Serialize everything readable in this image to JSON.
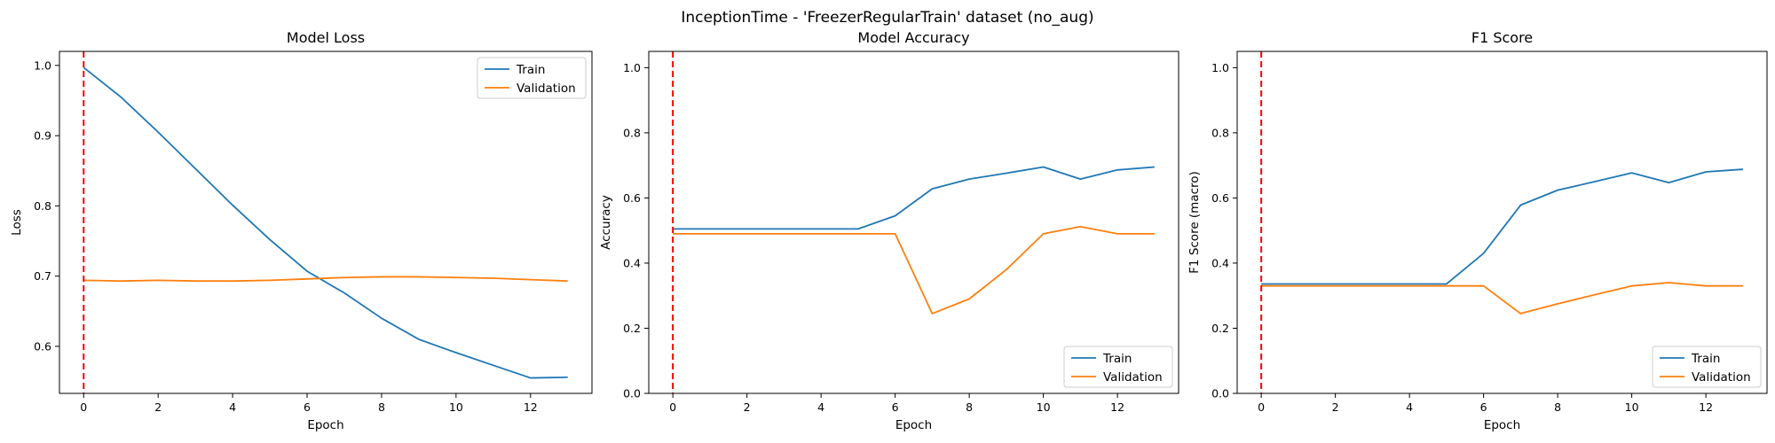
{
  "suptitle": "InceptionTime - 'FreezerRegularTrain' dataset (no_aug)",
  "colors": {
    "train": "#1f77b4",
    "validation": "#ff7f0e",
    "marker": "#ff0000"
  },
  "chart_data": [
    {
      "type": "line",
      "title": "Model Loss",
      "xlabel": "Epoch",
      "ylabel": "Loss",
      "xlim": [
        -0.65,
        13.65
      ],
      "ylim": [
        0.533,
        1.02
      ],
      "xticks": [
        0,
        2,
        4,
        6,
        8,
        10,
        12
      ],
      "yticks": [
        0.6,
        0.7,
        0.8,
        0.9,
        1.0
      ],
      "ytick_labels": [
        "0.6",
        "0.7",
        "0.8",
        "0.9",
        "1.0"
      ],
      "legend_position": "upper right",
      "vline_x": 0,
      "x": [
        0,
        1,
        2,
        3,
        4,
        5,
        6,
        7,
        8,
        9,
        10,
        11,
        12,
        13
      ],
      "series": [
        {
          "name": "Train",
          "values": [
            0.997,
            0.955,
            0.905,
            0.853,
            0.801,
            0.752,
            0.707,
            0.676,
            0.64,
            0.61,
            0.591,
            0.573,
            0.555,
            0.556
          ]
        },
        {
          "name": "Validation",
          "values": [
            0.694,
            0.693,
            0.694,
            0.693,
            0.693,
            0.694,
            0.696,
            0.698,
            0.699,
            0.699,
            0.698,
            0.697,
            0.695,
            0.693
          ]
        }
      ]
    },
    {
      "type": "line",
      "title": "Model Accuracy",
      "xlabel": "Epoch",
      "ylabel": "Accuracy",
      "xlim": [
        -0.65,
        13.65
      ],
      "ylim": [
        0,
        1.05
      ],
      "xticks": [
        0,
        2,
        4,
        6,
        8,
        10,
        12
      ],
      "yticks": [
        0,
        0.2,
        0.4,
        0.6,
        0.8,
        1.0
      ],
      "ytick_labels": [
        "0.0",
        "0.2",
        "0.4",
        "0.6",
        "0.8",
        "1.0"
      ],
      "legend_position": "lower right",
      "vline_x": 0,
      "x": [
        0,
        1,
        2,
        3,
        4,
        5,
        6,
        7,
        8,
        9,
        10,
        11,
        12,
        13
      ],
      "series": [
        {
          "name": "Train",
          "values": [
            0.505,
            0.505,
            0.505,
            0.505,
            0.505,
            0.505,
            0.545,
            0.628,
            0.658,
            0.676,
            0.695,
            0.658,
            0.686,
            0.695
          ]
        },
        {
          "name": "Validation",
          "values": [
            0.49,
            0.49,
            0.49,
            0.49,
            0.49,
            0.49,
            0.49,
            0.245,
            0.29,
            0.38,
            0.49,
            0.512,
            0.49,
            0.49
          ]
        }
      ]
    },
    {
      "type": "line",
      "title": "F1 Score",
      "xlabel": "Epoch",
      "ylabel": "F1 Score (macro)",
      "xlim": [
        -0.65,
        13.65
      ],
      "ylim": [
        0,
        1.05
      ],
      "xticks": [
        0,
        2,
        4,
        6,
        8,
        10,
        12
      ],
      "yticks": [
        0,
        0.2,
        0.4,
        0.6,
        0.8,
        1.0
      ],
      "ytick_labels": [
        "0.0",
        "0.2",
        "0.4",
        "0.6",
        "0.8",
        "1.0"
      ],
      "legend_position": "lower right",
      "vline_x": 0,
      "x": [
        0,
        1,
        2,
        3,
        4,
        5,
        6,
        7,
        8,
        9,
        10,
        11,
        12,
        13
      ],
      "series": [
        {
          "name": "Train",
          "values": [
            0.336,
            0.336,
            0.336,
            0.336,
            0.336,
            0.336,
            0.43,
            0.578,
            0.624,
            0.65,
            0.677,
            0.647,
            0.68,
            0.688
          ]
        },
        {
          "name": "Validation",
          "values": [
            0.33,
            0.33,
            0.33,
            0.33,
            0.33,
            0.33,
            0.33,
            0.245,
            0.275,
            0.303,
            0.33,
            0.34,
            0.33,
            0.33
          ]
        }
      ]
    }
  ]
}
